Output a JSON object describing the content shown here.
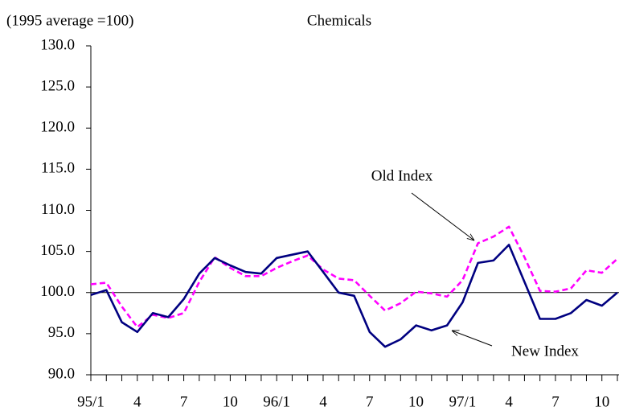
{
  "chart_data": {
    "type": "line",
    "title": "Chemicals",
    "y_label": "(1995 average =100)",
    "categories": [
      "95/1",
      null,
      null,
      "4",
      null,
      null,
      "7",
      null,
      null,
      "10",
      null,
      null,
      "96/1",
      null,
      null,
      "4",
      null,
      null,
      "7",
      null,
      null,
      "10",
      null,
      null,
      "97/1",
      null,
      null,
      "4",
      null,
      null,
      "7",
      null,
      null,
      "10",
      null
    ],
    "series": [
      {
        "name": "New Index",
        "color": "#000080",
        "dash": false,
        "values": [
          99.7,
          100.3,
          96.4,
          95.2,
          97.5,
          97.0,
          99.2,
          102.3,
          104.2,
          103.3,
          102.5,
          102.3,
          104.2,
          104.6,
          105.0,
          102.5,
          100.0,
          99.6,
          95.2,
          93.4,
          94.3,
          96.0,
          95.4,
          96.0,
          98.8,
          103.6,
          103.9,
          105.8,
          101.3,
          96.8,
          96.8,
          97.5,
          99.1,
          98.4,
          100.0
        ]
      },
      {
        "name": "Old Index",
        "color": "#ff00ff",
        "dash": true,
        "values": [
          101.0,
          101.2,
          98.3,
          95.8,
          97.3,
          96.9,
          97.5,
          101.3,
          104.3,
          103.0,
          102.0,
          102.0,
          103.0,
          103.8,
          104.5,
          102.8,
          101.7,
          101.5,
          99.6,
          97.8,
          98.7,
          100.1,
          99.9,
          99.5,
          101.5,
          106.0,
          106.8,
          108.0,
          104.3,
          100.2,
          100.1,
          100.5,
          102.7,
          102.4,
          104.1
        ]
      }
    ],
    "ylim": [
      90,
      130
    ],
    "yticks": [
      {
        "value": 90,
        "label": "90.0"
      },
      {
        "value": 95,
        "label": "95.0"
      },
      {
        "value": 100,
        "label": "100.0"
      },
      {
        "value": 105,
        "label": "105.0"
      },
      {
        "value": 110,
        "label": "110.0"
      },
      {
        "value": 115,
        "label": "115.0"
      },
      {
        "value": 120,
        "label": "120.0"
      },
      {
        "value": 125,
        "label": "125.0"
      },
      {
        "value": 130,
        "label": "130.0"
      }
    ],
    "reference_line": 100,
    "grid": false
  }
}
